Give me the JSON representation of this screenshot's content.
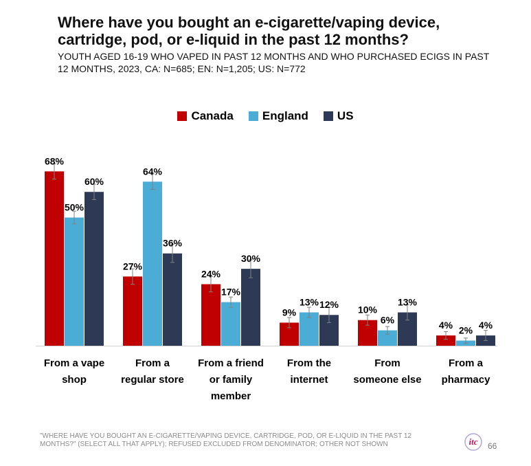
{
  "title": "Where have you bought an e-cigarette/vaping device, cartridge, pod, or e-liquid in the past 12 months?",
  "subtitle": "YOUTH AGED 16-19 WHO VAPED IN PAST 12 MONTHS AND WHO PURCHASED ECIGS IN PAST 12 MONTHS, 2023, CA: N=685; EN: N=1,205; US: N=772",
  "footer_note": "\"WHERE HAVE YOU BOUGHT AN E-CIGARETTE/VAPING DEVICE, CARTRIDGE, POD, OR E-LIQUID IN THE PAST 12 MONTHS?\" (SELECT ALL THAT APPLY); REFUSED EXCLUDED FROM DENOMINATOR; OTHER NOT SHOWN",
  "logo_text": "itc",
  "page_number": "66",
  "colors": {
    "canada": "#c00000",
    "england": "#4bacd6",
    "us": "#2e3a55",
    "error_bar": "#7f7f7f"
  },
  "legend": [
    {
      "label": "Canada",
      "color": "#c00000"
    },
    {
      "label": "England",
      "color": "#4bacd6"
    },
    {
      "label": "US",
      "color": "#2e3a55"
    }
  ],
  "chart_data": {
    "type": "bar",
    "categories": [
      [
        "From a vape",
        "shop"
      ],
      [
        "From a",
        "regular store"
      ],
      [
        "From a friend",
        "or family",
        "member"
      ],
      [
        "From the",
        "internet"
      ],
      [
        "From",
        "someone else"
      ],
      [
        "From a",
        "pharmacy"
      ]
    ],
    "series": [
      {
        "name": "Canada",
        "color": "#c00000",
        "values": [
          68,
          27,
          24,
          9,
          10,
          4
        ],
        "errors": [
          3,
          3,
          3,
          2,
          2,
          1.5
        ]
      },
      {
        "name": "England",
        "color": "#4bacd6",
        "values": [
          50,
          64,
          17,
          13,
          6,
          2
        ],
        "errors": [
          2.5,
          3,
          2,
          2,
          1.5,
          1
        ]
      },
      {
        "name": "US",
        "color": "#2e3a55",
        "values": [
          60,
          36,
          30,
          12,
          13,
          4
        ],
        "errors": [
          3,
          3.5,
          3.5,
          3,
          3,
          2
        ]
      }
    ],
    "value_suffix": "%",
    "ylim": [
      0,
      70
    ],
    "grid": false,
    "legend_position": "top-center"
  }
}
